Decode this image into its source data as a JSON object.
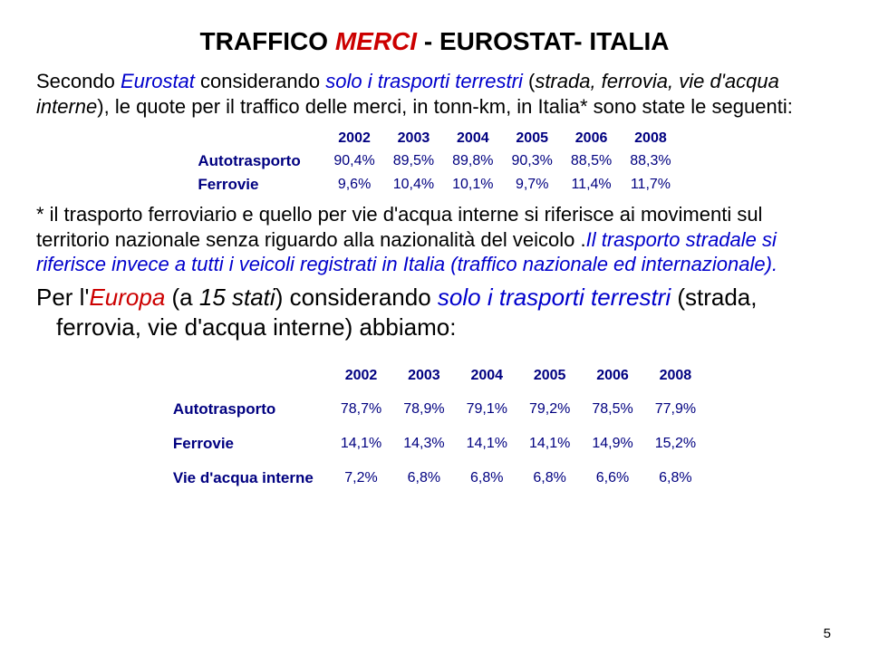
{
  "title": {
    "pre": "TRAFFICO ",
    "red": "MERCI",
    "post": " - EUROSTAT- ITALIA"
  },
  "intro": {
    "p1a": "Secondo ",
    "p1b": "Eurostat",
    "p1c": " considerando ",
    "p1d": "solo i trasporti terrestri",
    "p1e": " (",
    "p1f": "strada, ferrovia, vie d'acqua interne",
    "p1g": "), le quote per il traffico delle merci, in tonn-km, in Italia* sono state le seguenti:"
  },
  "table1": {
    "years": [
      "2002",
      "2003",
      "2004",
      "2005",
      "2006",
      "2008"
    ],
    "rows": [
      {
        "label": "Autotrasporto",
        "vals": [
          "90,4%",
          "89,5%",
          "89,8%",
          "90,3%",
          "88,5%",
          "88,3%"
        ]
      },
      {
        "label": "Ferrovie",
        "vals": [
          "9,6%",
          "10,4%",
          "10,1%",
          "9,7%",
          "11,4%",
          "11,7%"
        ]
      }
    ]
  },
  "note": {
    "a": "* il trasporto ferroviario e quello per vie d'acqua interne si riferisce ai movimenti sul territorio nazionale senza riguardo alla nazionalità del veicolo .",
    "b": "Il trasporto stradale si riferisce invece a tutti i veicoli registrati in Italia (traffico nazionale ed internazionale)."
  },
  "per": {
    "a": "Per l'",
    "b": "Europa",
    "c": " (a ",
    "d": "15 stati",
    "e": ") considerando ",
    "f": "solo i trasporti terrestri",
    "g": " (strada, ferrovia, vie d'acqua interne) abbiamo:"
  },
  "table2": {
    "years": [
      "2002",
      "2003",
      "2004",
      "2005",
      "2006",
      "2008"
    ],
    "rows": [
      {
        "label": "Autotrasporto",
        "vals": [
          "78,7%",
          "78,9%",
          "79,1%",
          "79,2%",
          "78,5%",
          "77,9%"
        ]
      },
      {
        "label": "Ferrovie",
        "vals": [
          "14,1%",
          "14,3%",
          "14,1%",
          "14,1%",
          "14,9%",
          "15,2%"
        ]
      },
      {
        "label": "Vie d'acqua interne",
        "vals": [
          "7,2%",
          "6,8%",
          "6,8%",
          "6,8%",
          "6,6%",
          "6,8%"
        ]
      }
    ]
  },
  "pagenum": "5",
  "colors": {
    "navy": "#000080",
    "red": "#cc0000",
    "blue": "#0000cc",
    "black": "#000000",
    "background": "#ffffff"
  },
  "typography": {
    "title_fontsize": 28,
    "intro_fontsize": 22,
    "per_fontsize": 26,
    "table_fontsize": 16,
    "font_family": "Comic Sans MS"
  }
}
